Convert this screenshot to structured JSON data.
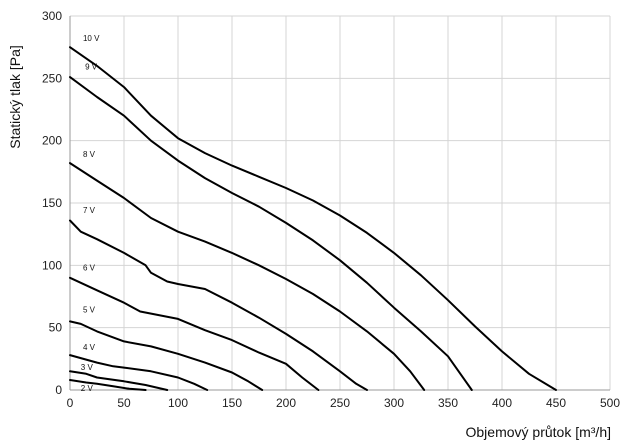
{
  "chart_data": {
    "type": "line",
    "xlabel": "Objemový průtok [m³/h]",
    "ylabel": "Statický tlak [Pa]",
    "xlim": [
      0,
      500
    ],
    "ylim": [
      0,
      300
    ],
    "x_ticks": [
      0,
      50,
      100,
      150,
      200,
      250,
      300,
      350,
      400,
      450,
      500
    ],
    "y_ticks": [
      0,
      50,
      100,
      150,
      200,
      250,
      300
    ],
    "x_tick_labels": [
      "0",
      "50",
      "100",
      "150",
      "200",
      "250",
      "300",
      "350",
      "400",
      "450",
      "500"
    ],
    "y_tick_labels": [
      "0",
      "50",
      "100",
      "150",
      "200",
      "250",
      "300"
    ],
    "grid": true,
    "series": [
      {
        "name": "10 V",
        "points": [
          [
            0,
            275
          ],
          [
            25,
            260
          ],
          [
            50,
            243
          ],
          [
            75,
            220
          ],
          [
            100,
            202
          ],
          [
            125,
            190
          ],
          [
            150,
            180
          ],
          [
            175,
            171
          ],
          [
            200,
            162
          ],
          [
            225,
            152
          ],
          [
            250,
            140
          ],
          [
            275,
            126
          ],
          [
            300,
            110
          ],
          [
            325,
            92
          ],
          [
            350,
            72
          ],
          [
            375,
            51
          ],
          [
            400,
            31
          ],
          [
            425,
            13
          ],
          [
            450,
            0
          ]
        ]
      },
      {
        "name": "9 V",
        "points": [
          [
            0,
            251
          ],
          [
            25,
            235
          ],
          [
            50,
            220
          ],
          [
            75,
            200
          ],
          [
            100,
            184
          ],
          [
            125,
            170
          ],
          [
            150,
            158
          ],
          [
            175,
            147
          ],
          [
            200,
            134
          ],
          [
            225,
            120
          ],
          [
            250,
            104
          ],
          [
            275,
            86
          ],
          [
            300,
            66
          ],
          [
            325,
            47
          ],
          [
            350,
            27
          ],
          [
            372,
            0
          ]
        ]
      },
      {
        "name": "8 V",
        "points": [
          [
            0,
            182
          ],
          [
            25,
            168
          ],
          [
            50,
            154
          ],
          [
            75,
            138
          ],
          [
            100,
            127
          ],
          [
            125,
            119
          ],
          [
            150,
            110
          ],
          [
            175,
            100
          ],
          [
            200,
            89
          ],
          [
            225,
            77
          ],
          [
            250,
            63
          ],
          [
            275,
            47
          ],
          [
            300,
            29
          ],
          [
            315,
            15
          ],
          [
            328,
            0
          ]
        ]
      },
      {
        "name": "7 V",
        "points": [
          [
            0,
            136
          ],
          [
            10,
            127
          ],
          [
            25,
            121
          ],
          [
            50,
            110
          ],
          [
            70,
            100
          ],
          [
            75,
            94
          ],
          [
            90,
            87
          ],
          [
            100,
            85
          ],
          [
            125,
            81
          ],
          [
            150,
            70
          ],
          [
            175,
            58
          ],
          [
            200,
            45
          ],
          [
            225,
            31
          ],
          [
            250,
            15
          ],
          [
            265,
            5
          ],
          [
            275,
            0
          ]
        ]
      },
      {
        "name": "6 V",
        "points": [
          [
            0,
            90
          ],
          [
            25,
            80
          ],
          [
            50,
            70
          ],
          [
            65,
            63
          ],
          [
            100,
            57
          ],
          [
            125,
            48
          ],
          [
            150,
            40
          ],
          [
            175,
            30
          ],
          [
            200,
            21
          ],
          [
            215,
            10
          ],
          [
            230,
            0
          ]
        ]
      },
      {
        "name": "5 V",
        "points": [
          [
            0,
            55
          ],
          [
            10,
            53
          ],
          [
            25,
            47
          ],
          [
            50,
            39
          ],
          [
            75,
            35
          ],
          [
            100,
            29
          ],
          [
            125,
            22
          ],
          [
            150,
            14
          ],
          [
            165,
            7
          ],
          [
            178,
            0
          ]
        ]
      },
      {
        "name": "4 V",
        "points": [
          [
            0,
            28
          ],
          [
            25,
            22
          ],
          [
            40,
            19
          ],
          [
            50,
            18
          ],
          [
            75,
            15
          ],
          [
            100,
            10
          ],
          [
            115,
            5
          ],
          [
            127,
            0
          ]
        ]
      },
      {
        "name": "3 V",
        "points": [
          [
            0,
            15
          ],
          [
            15,
            13
          ],
          [
            25,
            10
          ],
          [
            50,
            7
          ],
          [
            70,
            4
          ],
          [
            90,
            0
          ]
        ]
      },
      {
        "name": "2 V",
        "points": [
          [
            0,
            8
          ],
          [
            15,
            6
          ],
          [
            25,
            5
          ],
          [
            40,
            3
          ],
          [
            55,
            1
          ],
          [
            70,
            0
          ]
        ]
      }
    ],
    "curve_labels": [
      {
        "text": "10 V",
        "x": 12,
        "y": 280
      },
      {
        "text": "9 V",
        "x": 14,
        "y": 257
      },
      {
        "text": "8 V",
        "x": 12,
        "y": 187
      },
      {
        "text": "7 V",
        "x": 12,
        "y": 142
      },
      {
        "text": "6 V",
        "x": 12,
        "y": 96
      },
      {
        "text": "5 V",
        "x": 12,
        "y": 62
      },
      {
        "text": "4 V",
        "x": 12,
        "y": 32
      },
      {
        "text": "3 V",
        "x": 10,
        "y": 16
      },
      {
        "text": "2 V",
        "x": 10,
        "y": -1
      }
    ]
  }
}
